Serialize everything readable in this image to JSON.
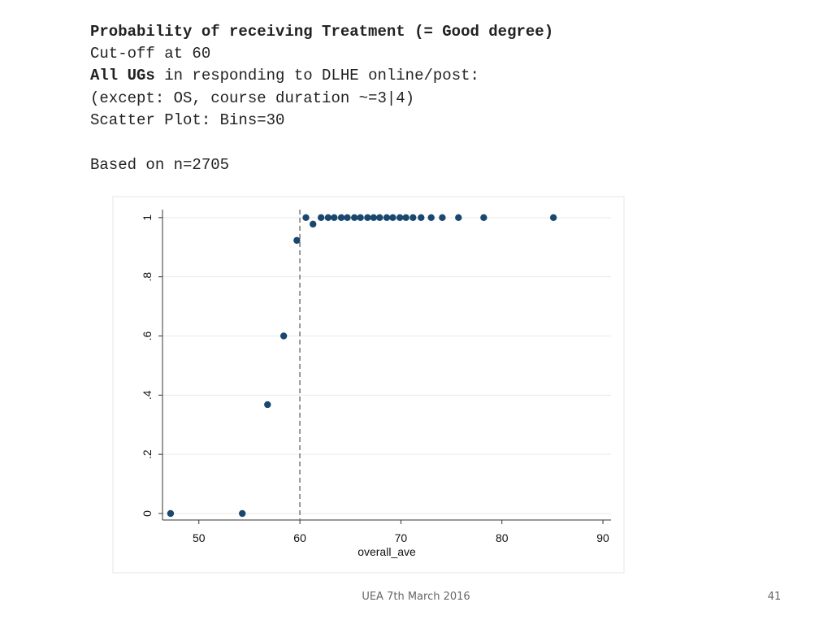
{
  "slide": {
    "title": "Probability of receiving Treatment (= Good degree)",
    "lines": [
      "Cut-off at 60"
    ],
    "group_bold": "All UGs",
    "group_rest": " in responding to DLHE online/post:",
    "notes": [
      "(except: OS, course duration ~=3|4)",
      "Scatter Plot: Bins=30"
    ],
    "sample": "Based on n=2705",
    "footer": "UEA 7th March 2016",
    "page_number": "41"
  },
  "chart_data": {
    "type": "scatter",
    "x_label": "overall_ave",
    "x": [
      47.2,
      54.3,
      56.8,
      58.4,
      59.7,
      60.6,
      61.3,
      62.1,
      62.8,
      63.4,
      64.1,
      64.7,
      65.4,
      66.0,
      66.7,
      67.3,
      67.9,
      68.6,
      69.2,
      69.9,
      70.5,
      71.2,
      72.0,
      73.0,
      74.1,
      75.7,
      78.2,
      85.1
    ],
    "values": [
      0,
      0,
      0.368,
      0.6,
      0.923,
      1,
      0.978,
      1,
      1,
      1,
      1,
      1,
      1,
      1,
      1,
      1,
      1,
      1,
      1,
      1,
      1,
      1,
      1,
      1,
      1,
      1,
      1,
      1
    ],
    "color": "#1a476f",
    "xlim": [
      46.4,
      90.8
    ],
    "ylim": [
      -0.022,
      1.027
    ],
    "xticks": [
      50,
      60,
      70,
      80,
      90
    ],
    "yticks": [
      0,
      {
        "value": 0.2,
        "label": ".2"
      },
      {
        "value": 0.4,
        "label": ".4"
      },
      {
        "value": 0.6,
        "label": ".6"
      },
      {
        "value": 0.8,
        "label": ".8"
      },
      1
    ],
    "grid": true,
    "cutoff_line": 60
  }
}
